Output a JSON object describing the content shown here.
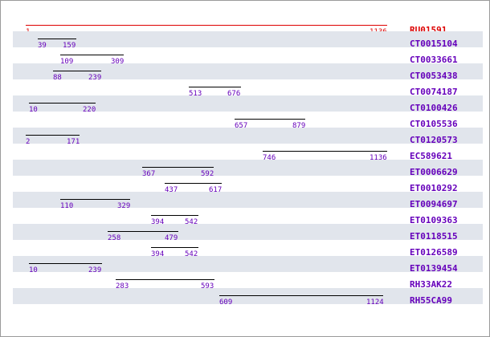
{
  "axis": {
    "min": 1,
    "max": 1136
  },
  "colors": {
    "reference": "#dd0000",
    "entry": "#6600bb",
    "segment": "#000000",
    "shade": "#e1e5ec"
  },
  "reference": {
    "name": "RU01591",
    "start": "1",
    "end": "1136"
  },
  "entries": [
    {
      "name": "CT0015104",
      "start": "39",
      "end": "159"
    },
    {
      "name": "CT0033661",
      "start": "109",
      "end": "309"
    },
    {
      "name": "CT0053438",
      "start": "88",
      "end": "239"
    },
    {
      "name": "CT0074187",
      "start": "513",
      "end": "676"
    },
    {
      "name": "CT0100426",
      "start": "10",
      "end": "220"
    },
    {
      "name": "CT0105536",
      "start": "657",
      "end": "879"
    },
    {
      "name": "CT0120573",
      "start": "2",
      "end": "171"
    },
    {
      "name": "EC589621",
      "start": "746",
      "end": "1136"
    },
    {
      "name": "ET0006629",
      "start": "367",
      "end": "592"
    },
    {
      "name": "ET0010292",
      "start": "437",
      "end": "617"
    },
    {
      "name": "ET0094697",
      "start": "110",
      "end": "329"
    },
    {
      "name": "ET0109363",
      "start": "394",
      "end": "542"
    },
    {
      "name": "ET0118515",
      "start": "258",
      "end": "479"
    },
    {
      "name": "ET0126589",
      "start": "394",
      "end": "542"
    },
    {
      "name": "ET0139454",
      "start": "10",
      "end": "239"
    },
    {
      "name": "RH33AK22",
      "start": "283",
      "end": "593"
    },
    {
      "name": "RH55CA99",
      "start": "609",
      "end": "1124"
    }
  ]
}
